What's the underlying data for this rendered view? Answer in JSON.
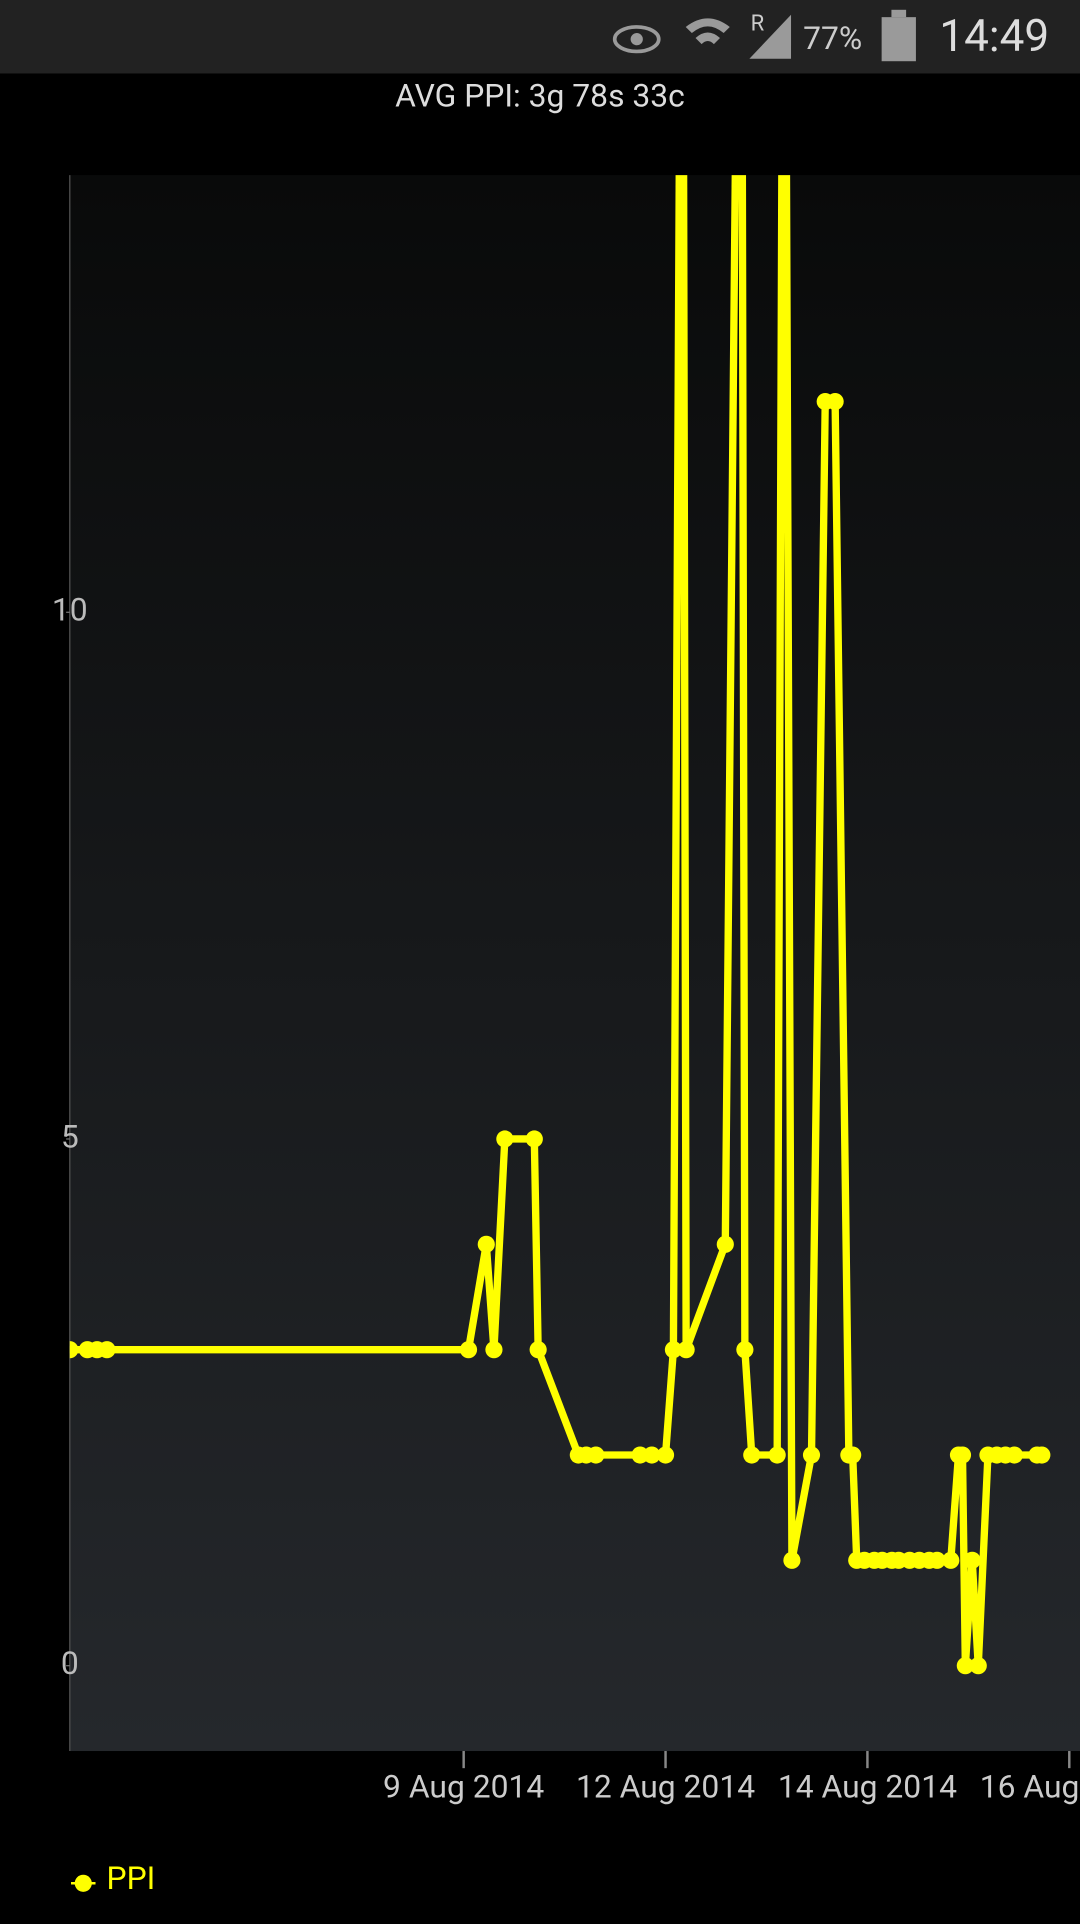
{
  "status_bar": {
    "network": "R",
    "battery": "77%",
    "time": "14:49"
  },
  "chart_data": {
    "type": "line",
    "title": "AVG PPI: 3g 78s 33c",
    "x": [
      -0.951,
      -0.864,
      -0.816,
      -0.767,
      1.024,
      1.112,
      1.15,
      1.204,
      1.35,
      1.369,
      1.568,
      1.607,
      1.655,
      1.874,
      1.932,
      2.0,
      2.039,
      2.083,
      2.102,
      2.296,
      2.374,
      2.393,
      2.427,
      2.553,
      2.587,
      2.626,
      2.723,
      2.791,
      2.84,
      2.908,
      2.927,
      2.947,
      2.985,
      3.034,
      3.073,
      3.121,
      3.155,
      3.209,
      3.257,
      3.306,
      3.345,
      3.413,
      3.451,
      3.471,
      3.485,
      3.519,
      3.549,
      3.597,
      3.641,
      3.684,
      3.728,
      3.84,
      3.864
    ],
    "series": [
      {
        "name": "PPI",
        "color": "#ffff00",
        "values": [
          3,
          3,
          3,
          3,
          3,
          4,
          3,
          5,
          5,
          3,
          2,
          2,
          2,
          2,
          2,
          2,
          3,
          20,
          3,
          4,
          20,
          3,
          2,
          2,
          20,
          1,
          2,
          12,
          12,
          2,
          2,
          1,
          1,
          1,
          1,
          1,
          1,
          1,
          1,
          1,
          1,
          1,
          2,
          2,
          0,
          1,
          0,
          2,
          2,
          2,
          2,
          2,
          2
        ]
      }
    ],
    "xlim": [
      -0.951,
      4.053
    ],
    "xticks": [
      {
        "value": 1,
        "label": "9 Aug 2014"
      },
      {
        "value": 2,
        "label": "12 Aug 2014"
      },
      {
        "value": 3,
        "label": "14 Aug 2014"
      },
      {
        "value": 4,
        "label": "16 Aug 2014"
      }
    ],
    "ylim": [
      -0.81,
      14.15
    ],
    "yticks": [
      0,
      5,
      10
    ],
    "legend": "bottom-left"
  }
}
